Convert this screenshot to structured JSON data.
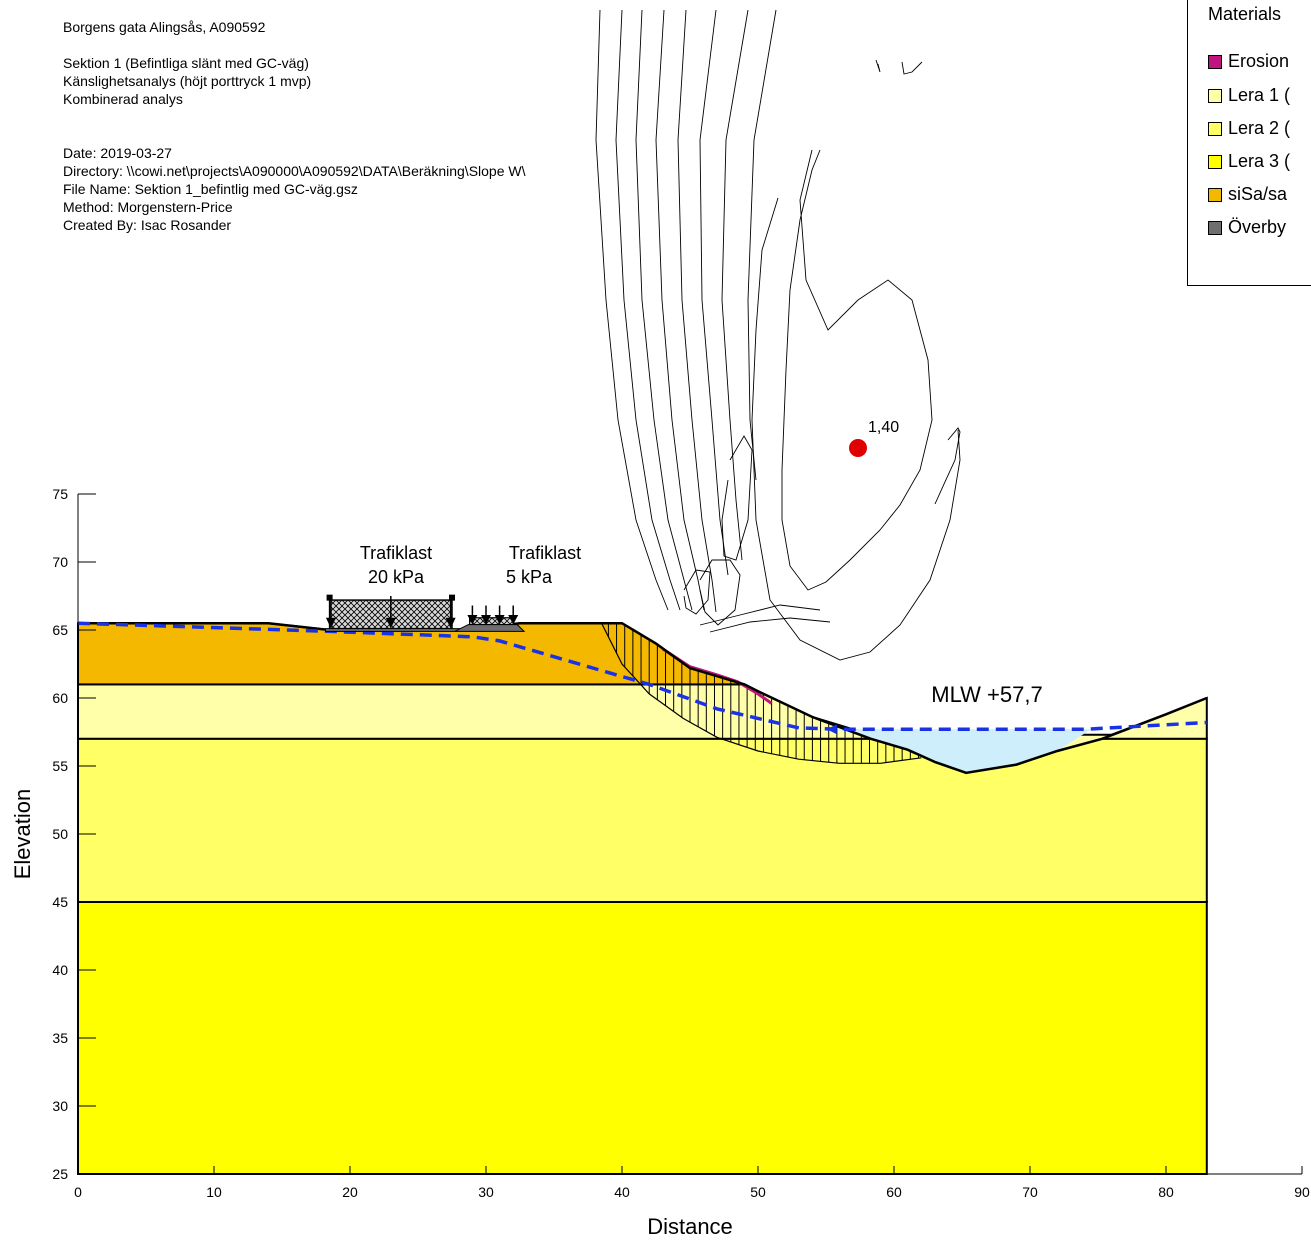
{
  "header": {
    "project": "Borgens gata Alingsås, A090592",
    "section": "Sektion 1 (Befintliga slänt med GC-väg)",
    "analysis": "Känslighetsanalys (höjt porttryck 1 mvp)",
    "type": "Kombinerad analys",
    "date": "Date: 2019-03-27",
    "directory": "Directory: \\\\cowi.net\\projects\\A090000\\A090592\\DATA\\Beräkning\\Slope W\\",
    "file": "File Name: Sektion 1_befintlig med GC-väg.gsz",
    "method": "Method: Morgenstern-Price",
    "created": "Created By: Isac Rosander"
  },
  "legend": {
    "title": "Materials",
    "items": [
      {
        "label": "Erosion",
        "color": "#c0147e"
      },
      {
        "label": "Lera 1 (",
        "color": "#ffffaa"
      },
      {
        "label": "Lera 2 (",
        "color": "#ffff66"
      },
      {
        "label": "Lera 3 (",
        "color": "#ffff00"
      },
      {
        "label": "siSa/sa",
        "color": "#f5b800"
      },
      {
        "label": "Överby",
        "color": "#6e6e6e"
      }
    ]
  },
  "annotations": {
    "load1_line1": "Trafiklast",
    "load1_line2": "20 kPa",
    "load2_line1": "Trafiklast",
    "load2_line2": "5 kPa",
    "water_level": "MLW +57,7",
    "factor_of_safety": "1,40"
  },
  "chart_data": {
    "type": "diagram",
    "xlabel": "Distance",
    "ylabel": "Elevation",
    "xlim": [
      0,
      90
    ],
    "ylim": [
      25,
      75
    ],
    "xticks": [
      0,
      10,
      20,
      30,
      40,
      50,
      60,
      70,
      80,
      90
    ],
    "yticks": [
      25,
      30,
      35,
      40,
      45,
      50,
      55,
      60,
      65,
      70,
      75
    ],
    "layers": [
      {
        "material": "Lera 3 (",
        "color": "#ffff00",
        "polygon": [
          [
            0,
            25
          ],
          [
            83,
            25
          ],
          [
            83,
            45
          ],
          [
            0,
            45
          ]
        ]
      },
      {
        "material": "Lera 2 (",
        "color": "#ffff66",
        "polygon": [
          [
            0,
            45
          ],
          [
            83,
            45
          ],
          [
            83,
            57
          ],
          [
            0,
            57
          ]
        ]
      },
      {
        "material": "Lera 1 (",
        "color": "#ffffaa",
        "polygon": [
          [
            0,
            57
          ],
          [
            54.3,
            57
          ],
          [
            58.3,
            57
          ],
          [
            61,
            56.2
          ],
          [
            63,
            55.3
          ],
          [
            65.3,
            54.5
          ],
          [
            69,
            55.1
          ],
          [
            72,
            56.1
          ],
          [
            75.3,
            57
          ],
          [
            83,
            57
          ],
          [
            83,
            60
          ],
          [
            80,
            58.8
          ],
          [
            76,
            57.3
          ],
          [
            66,
            57.3
          ],
          [
            58,
            57.4
          ],
          [
            54,
            58.6
          ],
          [
            50,
            60.5
          ],
          [
            49,
            61
          ],
          [
            0,
            61
          ]
        ]
      },
      {
        "material": "siSa/sa",
        "color": "#f5b800",
        "polygon": [
          [
            0,
            61
          ],
          [
            49,
            61
          ],
          [
            47,
            61.6
          ],
          [
            45,
            62.2
          ],
          [
            42.5,
            64
          ],
          [
            40,
            65.5
          ],
          [
            32.5,
            65.5
          ],
          [
            28,
            65
          ],
          [
            27,
            65
          ],
          [
            18.5,
            65
          ],
          [
            14,
            65.5
          ],
          [
            0,
            65.5
          ]
        ]
      }
    ],
    "surface": [
      [
        0,
        65.5
      ],
      [
        14,
        65.5
      ],
      [
        18.5,
        65
      ],
      [
        27,
        65
      ],
      [
        28,
        65
      ],
      [
        32.5,
        65.5
      ],
      [
        40,
        65.5
      ],
      [
        42.5,
        64
      ],
      [
        45,
        62.2
      ],
      [
        47,
        61.6
      ],
      [
        49,
        61
      ],
      [
        50,
        60.5
      ],
      [
        54,
        58.6
      ],
      [
        58.3,
        57
      ],
      [
        61,
        56.2
      ],
      [
        63,
        55.3
      ],
      [
        65.3,
        54.5
      ],
      [
        69,
        55.1
      ],
      [
        72,
        56.1
      ],
      [
        75.3,
        57
      ],
      [
        80,
        58.8
      ],
      [
        83,
        60
      ]
    ],
    "piezometric_line": [
      [
        0,
        65.5
      ],
      [
        18.5,
        64.9
      ],
      [
        29,
        64.5
      ],
      [
        31,
        64.2
      ],
      [
        42,
        61
      ],
      [
        47,
        59.2
      ],
      [
        53,
        57.8
      ],
      [
        56,
        57.7
      ],
      [
        74,
        57.7
      ],
      [
        83,
        58.2
      ]
    ],
    "water_polygon": [
      [
        55.5,
        57.7
      ],
      [
        74.5,
        57.7
      ],
      [
        72,
        56.1
      ],
      [
        69,
        55.1
      ],
      [
        65.3,
        54.5
      ],
      [
        63,
        55.3
      ],
      [
        61,
        56.2
      ],
      [
        58.3,
        57
      ],
      [
        56.5,
        57.5
      ]
    ],
    "slip_surface": [
      [
        38.5,
        65.5
      ],
      [
        40,
        62.5
      ],
      [
        42,
        60.3
      ],
      [
        44.5,
        58.5
      ],
      [
        47,
        57.1
      ],
      [
        50,
        56.1
      ],
      [
        53,
        55.5
      ],
      [
        56,
        55.2
      ],
      [
        59,
        55.2
      ],
      [
        62,
        55.6
      ]
    ],
    "critical_center": {
      "x": 57.5,
      "y": 85.5,
      "fos": "1,40"
    },
    "loads": [
      {
        "x1": 18.5,
        "x2": 27.5,
        "q": "20 kPa"
      },
      {
        "x1": 28.5,
        "x2": 32,
        "q": "5 kPa"
      }
    ]
  }
}
